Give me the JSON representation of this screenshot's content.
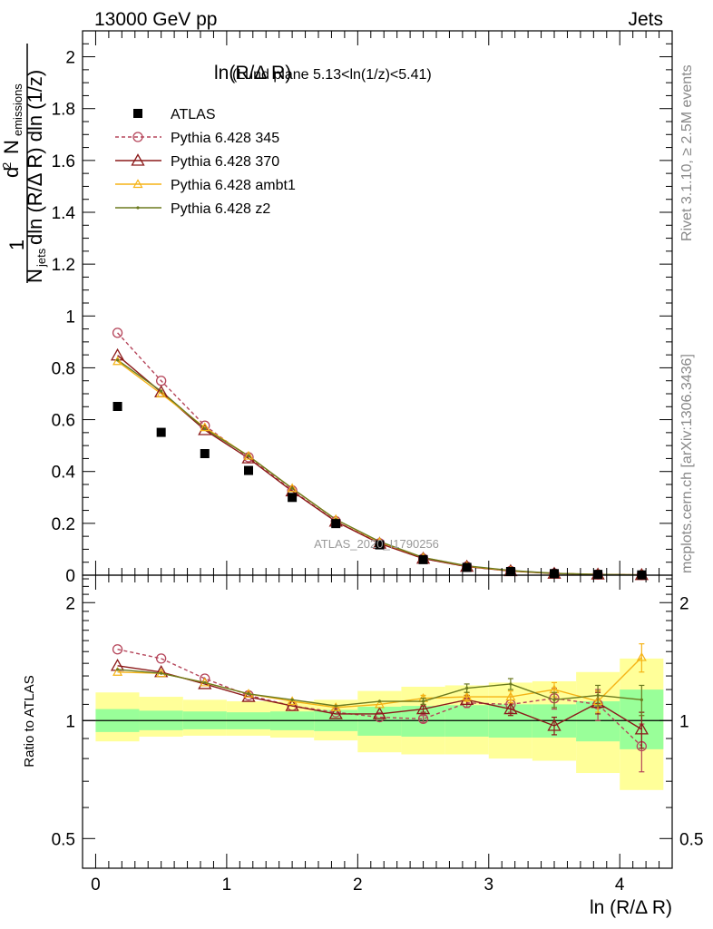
{
  "header": {
    "left": "13000 GeV pp",
    "right": "Jets"
  },
  "side_labels": {
    "rivet": "Rivet 3.1.10, ≥ 2.5M events",
    "mcplots": "mcplots.cern.ch [arXiv:1306.3436]"
  },
  "colors": {
    "atlas": "#000000",
    "p345": "#b5455a",
    "p370": "#8b1a1a",
    "ambt1": "#f5b316",
    "z2": "#6b7a1f",
    "band_inner": "#99ff99",
    "band_outer": "#ffff99"
  },
  "chart_data": [
    {
      "type": "scatter",
      "title": "ln(R/Δ R) (Lund plane 5.13<ln(1/z)<5.41)",
      "title_main": "ln(R/Δ R)",
      "title_rest": " (Lund plane 5.13<ln(1/z)<5.41)",
      "ylabel_parts": {
        "frac_top": "1",
        "d": "d",
        "sup": "2",
        "N": "N",
        "emissions": "emissions",
        "N2": "N",
        "jets": "jets",
        "rest": "dln (R/Δ R) dln (1/z)"
      },
      "watermark": "ATLAS_2020_I1790256",
      "xlim": [
        -0.1,
        4.4
      ],
      "ylim": [
        0,
        2.1
      ],
      "x_ticks": [
        0,
        1,
        2,
        3,
        4
      ],
      "y_ticks": [
        0,
        0.2,
        0.4,
        0.6,
        0.8,
        1,
        1.2,
        1.4,
        1.6,
        1.8,
        2
      ],
      "y_tick_labels": [
        "0",
        "0.2",
        "0.4",
        "0.6",
        "0.8",
        "1",
        "1.2",
        "1.4",
        "1.6",
        "1.8",
        "2"
      ],
      "x": [
        0.167,
        0.5,
        0.833,
        1.167,
        1.5,
        1.833,
        2.167,
        2.5,
        2.833,
        3.167,
        3.5,
        3.833,
        4.167
      ],
      "legend": [
        {
          "key": "atlas",
          "label": "ATLAS"
        },
        {
          "key": "p345",
          "label": "Pythia 6.428 345"
        },
        {
          "key": "p370",
          "label": "Pythia 6.428 370"
        },
        {
          "key": "ambt1",
          "label": "Pythia 6.428 ambt1"
        },
        {
          "key": "z2",
          "label": "Pythia 6.428 z2"
        }
      ],
      "series": [
        {
          "name": "ATLAS",
          "key": "atlas",
          "values": [
            0.651,
            0.551,
            0.469,
            0.404,
            0.3,
            0.199,
            0.117,
            0.06,
            0.03,
            0.014,
            0.006,
            0.003,
            0.001
          ]
        },
        {
          "name": "Pythia 6.428 345",
          "key": "p345",
          "values": [
            0.935,
            0.75,
            0.577,
            0.455,
            0.327,
            0.208,
            0.123,
            0.064,
            0.033,
            0.016,
            0.007,
            0.003,
            0.001
          ]
        },
        {
          "name": "Pythia 6.428 370",
          "key": "p370",
          "values": [
            0.848,
            0.706,
            0.56,
            0.451,
            0.324,
            0.207,
            0.122,
            0.064,
            0.033,
            0.016,
            0.006,
            0.003,
            0.001
          ]
        },
        {
          "name": "Pythia 6.428 ambt1",
          "key": "ambt1",
          "values": [
            0.825,
            0.7,
            0.57,
            0.46,
            0.335,
            0.215,
            0.128,
            0.068,
            0.035,
            0.017,
            0.007,
            0.003,
            0.001
          ]
        },
        {
          "name": "Pythia 6.428 z2",
          "key": "z2",
          "values": [
            0.83,
            0.71,
            0.565,
            0.46,
            0.335,
            0.215,
            0.13,
            0.068,
            0.036,
            0.018,
            0.007,
            0.003,
            0.001
          ]
        }
      ]
    },
    {
      "type": "line",
      "ylabel": "Ratio to ATLAS",
      "xlabel": "ln (R/Δ R)",
      "xlim": [
        -0.1,
        4.4
      ],
      "ylim": [
        0.42,
        2.35
      ],
      "log_y": true,
      "x_ticks": [
        0,
        1,
        2,
        3,
        4
      ],
      "x_tick_labels": [
        "0",
        "1",
        "2",
        "3",
        "4"
      ],
      "y_ticks": [
        0.5,
        1,
        2
      ],
      "y_tick_labels": [
        "0.5",
        "1",
        "2"
      ],
      "bins": [
        [
          0,
          0.333
        ],
        [
          0.333,
          0.667
        ],
        [
          0.667,
          1
        ],
        [
          1,
          1.333
        ],
        [
          1.333,
          1.667
        ],
        [
          1.667,
          2
        ],
        [
          2,
          2.333
        ],
        [
          2.333,
          2.667
        ],
        [
          2.667,
          3
        ],
        [
          3,
          3.333
        ],
        [
          3.333,
          3.667
        ],
        [
          3.667,
          4
        ],
        [
          4,
          4.333
        ]
      ],
      "band_inner": [
        [
          0.935,
          1.07
        ],
        [
          0.945,
          1.06
        ],
        [
          0.95,
          1.055
        ],
        [
          0.95,
          1.05
        ],
        [
          0.945,
          1.055
        ],
        [
          0.94,
          1.065
        ],
        [
          0.915,
          1.085
        ],
        [
          0.91,
          1.09
        ],
        [
          0.91,
          1.095
        ],
        [
          0.905,
          1.1
        ],
        [
          0.905,
          1.1
        ],
        [
          0.885,
          1.12
        ],
        [
          0.845,
          1.2
        ]
      ],
      "band_outer": [
        [
          0.885,
          1.18
        ],
        [
          0.91,
          1.15
        ],
        [
          0.915,
          1.13
        ],
        [
          0.915,
          1.12
        ],
        [
          0.905,
          1.12
        ],
        [
          0.89,
          1.13
        ],
        [
          0.83,
          1.19
        ],
        [
          0.82,
          1.22
        ],
        [
          0.82,
          1.23
        ],
        [
          0.8,
          1.25
        ],
        [
          0.79,
          1.26
        ],
        [
          0.735,
          1.33
        ],
        [
          0.665,
          1.44
        ]
      ],
      "x": [
        0.167,
        0.5,
        0.833,
        1.167,
        1.5,
        1.833,
        2.167,
        2.5,
        2.833,
        3.167,
        3.5,
        3.833,
        4.167
      ],
      "series": [
        {
          "name": "Pythia 6.428 345",
          "key": "p345",
          "values": [
            1.52,
            1.44,
            1.28,
            1.16,
            1.09,
            1.05,
            1.02,
            1.01,
            1.11,
            1.1,
            1.14,
            1.1,
            0.86
          ],
          "errors": [
            0.01,
            0.01,
            0.01,
            0.01,
            0.01,
            0.01,
            0.01,
            0.02,
            0.03,
            0.05,
            0.07,
            0.1,
            0.12
          ]
        },
        {
          "name": "Pythia 6.428 370",
          "key": "p370",
          "values": [
            1.38,
            1.33,
            1.24,
            1.15,
            1.09,
            1.04,
            1.04,
            1.07,
            1.13,
            1.07,
            0.97,
            1.11,
            0.95
          ],
          "errors": [
            0.01,
            0.01,
            0.01,
            0.01,
            0.01,
            0.01,
            0.01,
            0.02,
            0.03,
            0.04,
            0.05,
            0.07,
            0.1
          ]
        },
        {
          "name": "Pythia 6.428 ambt1",
          "key": "ambt1",
          "values": [
            1.33,
            1.32,
            1.25,
            1.17,
            1.12,
            1.08,
            1.1,
            1.14,
            1.15,
            1.15,
            1.2,
            1.12,
            1.45
          ],
          "errors": [
            0.01,
            0.01,
            0.01,
            0.01,
            0.01,
            0.01,
            0.01,
            0.02,
            0.03,
            0.04,
            0.05,
            0.07,
            0.12
          ]
        },
        {
          "name": "Pythia 6.428 z2",
          "key": "z2",
          "values": [
            1.35,
            1.32,
            1.25,
            1.17,
            1.13,
            1.09,
            1.12,
            1.12,
            1.21,
            1.24,
            1.13,
            1.16,
            1.13
          ],
          "errors": [
            0.01,
            0.01,
            0.01,
            0.01,
            0.01,
            0.01,
            0.01,
            0.02,
            0.03,
            0.04,
            0.05,
            0.07,
            0.1
          ]
        }
      ]
    }
  ]
}
